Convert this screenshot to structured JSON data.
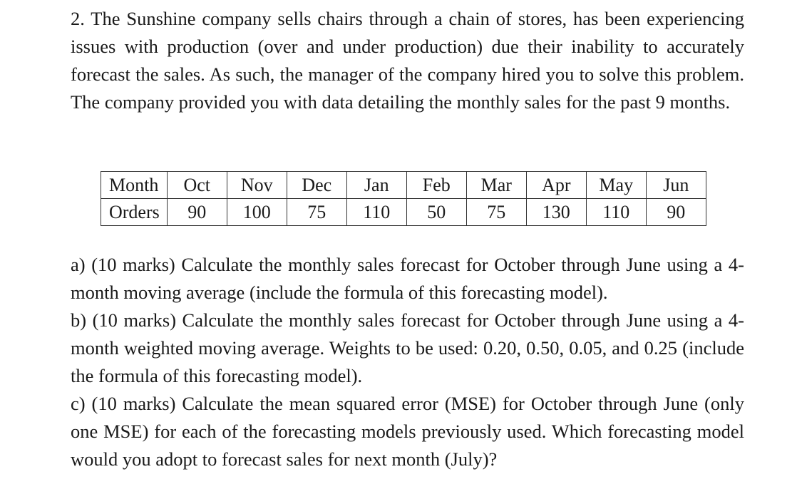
{
  "question": {
    "intro": "2. The Sunshine company sells chairs through a chain of stores, has been experiencing issues with production (over and under production) due their inability to accurately forecast the sales. As such, the manager of the company hired you to solve this problem. The company provided you with data detailing the monthly sales for the past 9 months."
  },
  "table": {
    "row_headers": [
      "Month",
      "Orders"
    ],
    "months": [
      "Oct",
      "Nov",
      "Dec",
      "Jan",
      "Feb",
      "Mar",
      "Apr",
      "May",
      "Jun"
    ],
    "orders": [
      "90",
      "100",
      "75",
      "110",
      "50",
      "75",
      "130",
      "110",
      "90"
    ]
  },
  "parts": [
    {
      "text": "a) (10 marks) Calculate the monthly sales forecast for October through June using a 4-month moving average (include the formula of this forecasting model)."
    },
    {
      "text": "b) (10 marks) Calculate the monthly sales forecast for October through June using a 4-month weighted moving average. Weights to be used: 0.20, 0.50, 0.05, and 0.25 (include the formula of this forecasting model)."
    },
    {
      "text": "c) (10 marks) Calculate the mean squared error (MSE) for October through June (only one MSE) for each of the forecasting models previously used. Which forecasting model would you adopt to forecast sales for next month (July)?"
    }
  ]
}
